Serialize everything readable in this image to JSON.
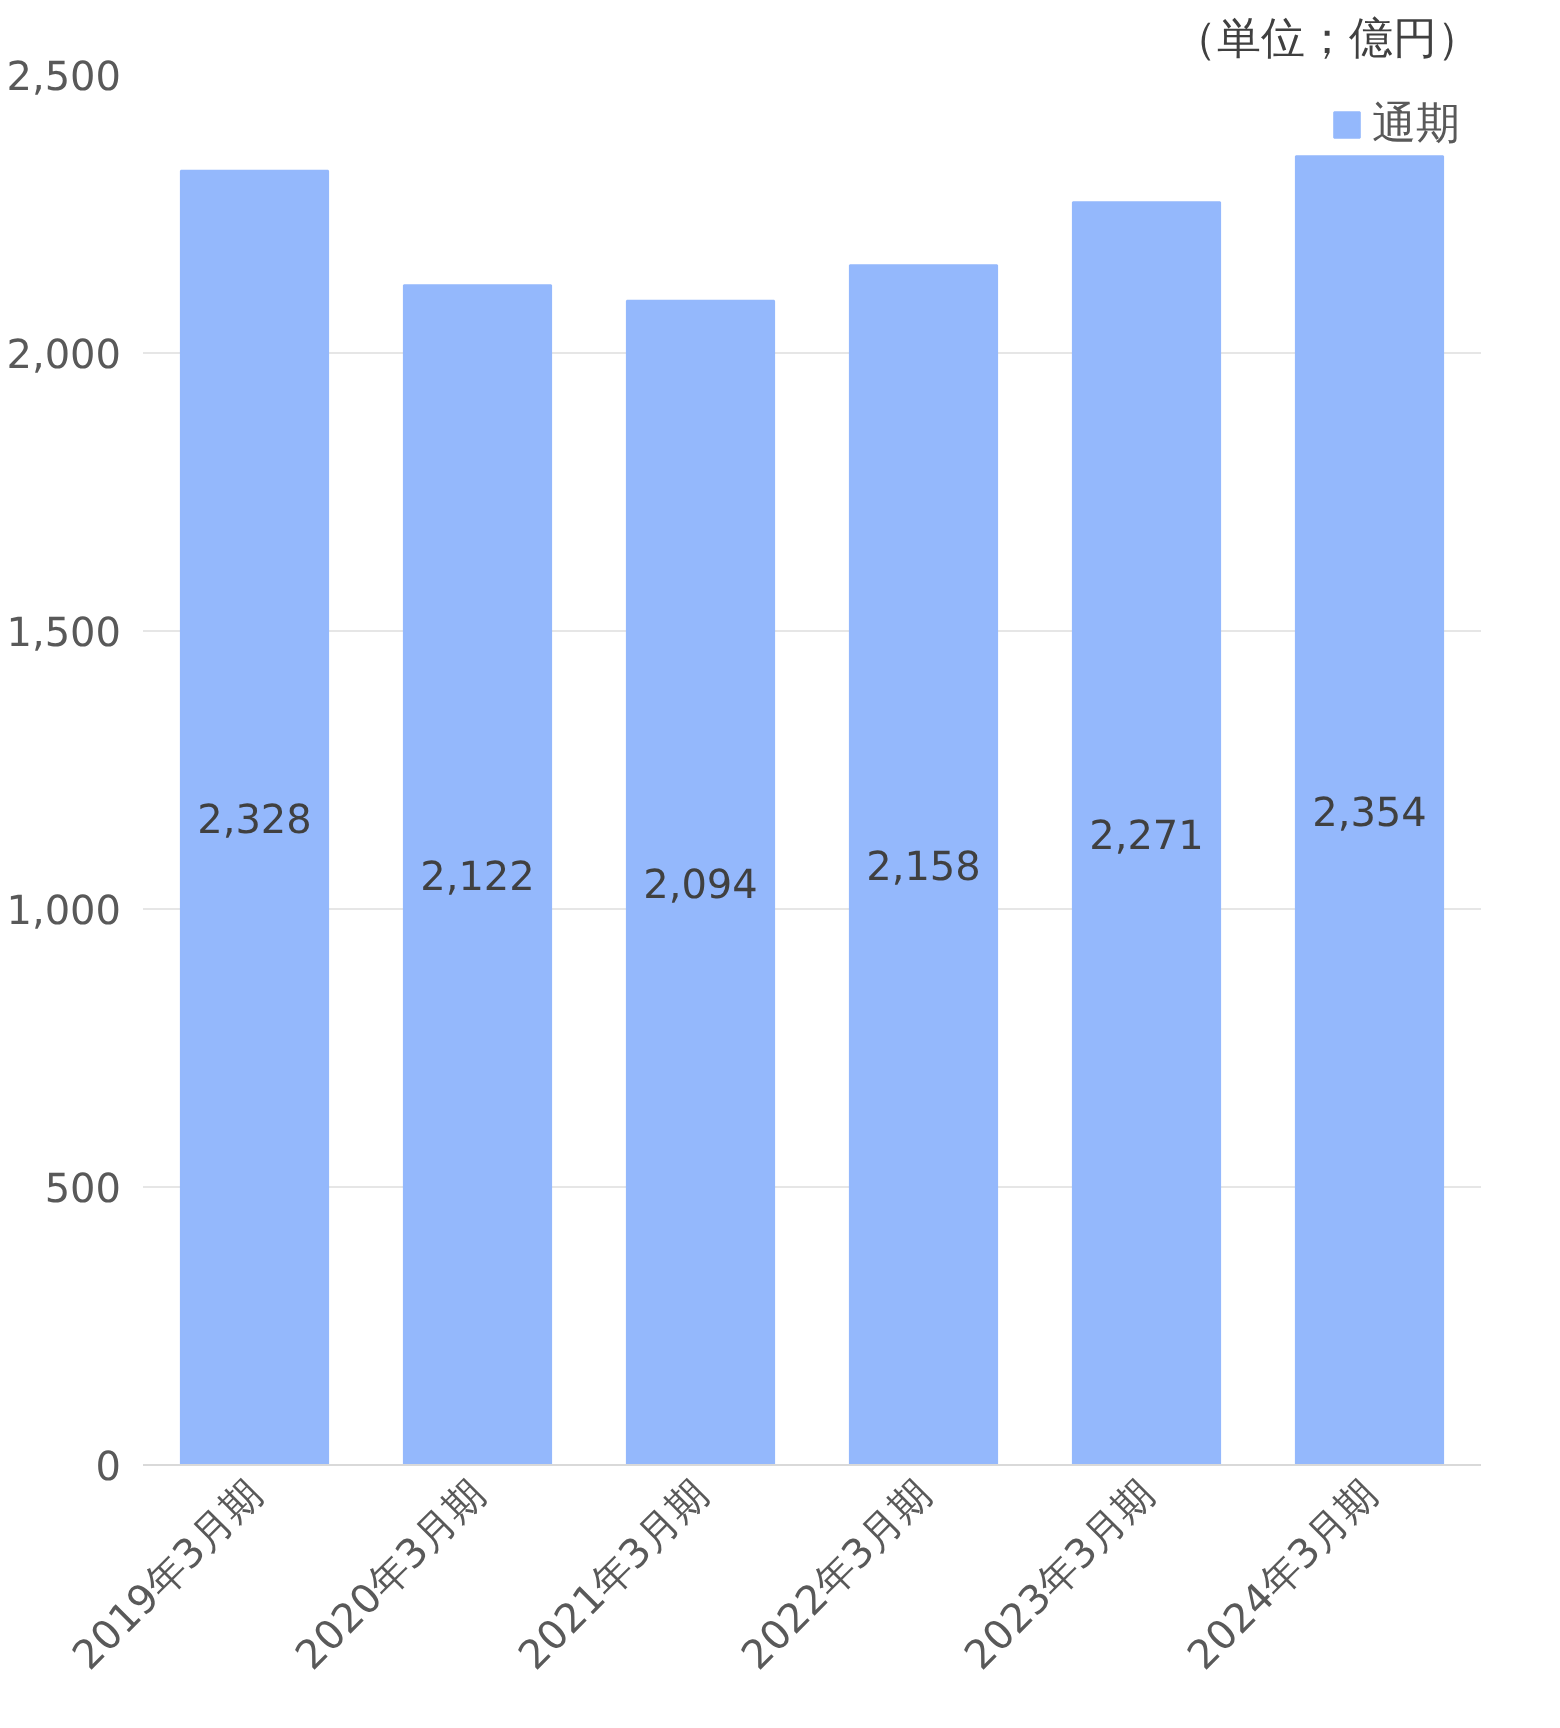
{
  "chart_data": {
    "type": "bar",
    "categories": [
      "2019年3月期",
      "2020年3月期",
      "2021年3月期",
      "2022年3月期",
      "2023年3月期",
      "2024年3月期"
    ],
    "series": [
      {
        "name": "通期",
        "color": "#94b8fc",
        "values": [
          2328,
          2122,
          2094,
          2158,
          2271,
          2354
        ],
        "value_labels": [
          "2,328",
          "2,122",
          "2,094",
          "2,158",
          "2,271",
          "2,354"
        ]
      }
    ],
    "ylim": [
      0,
      2500
    ],
    "yticks": [
      0,
      {
        "value": 500,
        "label": "500"
      },
      {
        "value": 1000,
        "label": "1,000"
      },
      {
        "value": 1500,
        "label": "1,500"
      },
      {
        "value": 2000,
        "label": "2,000"
      },
      {
        "value": 2500,
        "label": "2,500"
      }
    ],
    "grid": "y",
    "legend": "top right",
    "annotations": [
      "（単位；億円）"
    ]
  }
}
